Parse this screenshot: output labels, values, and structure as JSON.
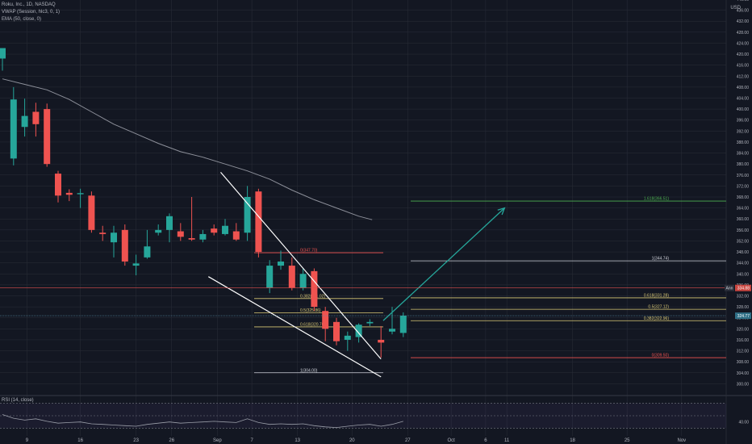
{
  "header": {
    "title": "Roku, Inc., 1D, NASDAQ",
    "vwap": "VWAP (Session, hlc3, 0, 1)",
    "ema": "EMA (50, close, 0)",
    "currency": "USD"
  },
  "rsi_label": "RSI (14, close)",
  "colors": {
    "background": "#131722",
    "bull": "#26a69a",
    "bear": "#ef5350",
    "grid": "#2a2e39",
    "text": "#b2b5be",
    "ema": "#8c8f99",
    "wedge": "#ffffff",
    "arrow": "#26a69a",
    "fib_top": "#4caf50",
    "fib_base": "#ef5350",
    "fib_mid": "#d9c876",
    "current_line": "#e05050",
    "last_line": "#5a8fa8"
  },
  "chart_data": {
    "type": "candlestick",
    "symbol": "ROKU",
    "timeframe": "1D",
    "exchange": "NASDAQ",
    "currency": "USD",
    "ylim": [
      296,
      440
    ],
    "y_ticks": [
      300.0,
      304.0,
      308.0,
      312.0,
      316.0,
      320.0,
      324.0,
      328.0,
      332.0,
      336.0,
      340.0,
      344.0,
      348.0,
      352.0,
      356.0,
      360.0,
      364.0,
      368.0,
      372.0,
      376.0,
      380.0,
      384.0,
      388.0,
      392.0,
      396.0,
      400.0,
      404.0,
      408.0,
      412.0,
      416.0,
      420.0,
      424.0,
      428.0,
      432.0,
      436.0,
      440.0
    ],
    "x_ticks": [
      {
        "label": "9",
        "idx": 2.2
      },
      {
        "label": "16",
        "idx": 7
      },
      {
        "label": "23",
        "idx": 12
      },
      {
        "label": "26",
        "idx": 15.2
      },
      {
        "label": "Sep",
        "idx": 19.3
      },
      {
        "label": "7",
        "idx": 22.4
      },
      {
        "label": "13",
        "idx": 26.5
      },
      {
        "label": "20",
        "idx": 31.4
      },
      {
        "label": "27",
        "idx": 36.4
      },
      {
        "label": "Oct",
        "idx": 40.3
      },
      {
        "label": "6",
        "idx": 43.4
      },
      {
        "label": "11",
        "idx": 45.3
      },
      {
        "label": "18",
        "idx": 51.2
      },
      {
        "label": "25",
        "idx": 56.1
      },
      {
        "label": "Nov",
        "idx": 61.0
      }
    ],
    "candles": [
      {
        "o": 418.4,
        "h": 422.0,
        "l": 414.0,
        "c": 422.2
      },
      {
        "o": 382.0,
        "h": 408.0,
        "l": 379.5,
        "c": 403.5
      },
      {
        "o": 393.5,
        "h": 403.8,
        "l": 390.0,
        "c": 397.5
      },
      {
        "o": 399.0,
        "h": 402.3,
        "l": 390.0,
        "c": 394.5
      },
      {
        "o": 400.0,
        "h": 402.0,
        "l": 379.0,
        "c": 380.0
      },
      {
        "o": 376.5,
        "h": 377.5,
        "l": 366.0,
        "c": 368.5
      },
      {
        "o": 369.5,
        "h": 370.8,
        "l": 366.5,
        "c": 368.8
      },
      {
        "o": 369.0,
        "h": 371.0,
        "l": 364.0,
        "c": 369.4
      },
      {
        "o": 368.5,
        "h": 370.0,
        "l": 355.0,
        "c": 356.0
      },
      {
        "o": 355.0,
        "h": 357.5,
        "l": 352.0,
        "c": 354.5
      },
      {
        "o": 351.5,
        "h": 357.5,
        "l": 346.0,
        "c": 355.0
      },
      {
        "o": 356.0,
        "h": 358.0,
        "l": 343.0,
        "c": 344.5
      },
      {
        "o": 343.0,
        "h": 347.0,
        "l": 339.5,
        "c": 343.8
      },
      {
        "o": 346.0,
        "h": 356.0,
        "l": 345.5,
        "c": 350.0
      },
      {
        "o": 355.0,
        "h": 358.0,
        "l": 354.0,
        "c": 356.0
      },
      {
        "o": 356.0,
        "h": 362.0,
        "l": 351.5,
        "c": 361.0
      },
      {
        "o": 355.5,
        "h": 358.5,
        "l": 352.0,
        "c": 353.5
      },
      {
        "o": 353.0,
        "h": 368.0,
        "l": 352.0,
        "c": 352.5
      },
      {
        "o": 352.5,
        "h": 356.0,
        "l": 351.5,
        "c": 354.5
      },
      {
        "o": 356.5,
        "h": 358.0,
        "l": 354.0,
        "c": 355.0
      },
      {
        "o": 354.5,
        "h": 360.0,
        "l": 354.0,
        "c": 357.5
      },
      {
        "o": 355.5,
        "h": 358.5,
        "l": 352.0,
        "c": 352.5
      },
      {
        "o": 355.0,
        "h": 372.0,
        "l": 352.0,
        "c": 368.0
      },
      {
        "o": 370.0,
        "h": 371.0,
        "l": 346.0,
        "c": 348.0
      },
      {
        "o": 335.0,
        "h": 345.0,
        "l": 333.0,
        "c": 343.0
      },
      {
        "o": 343.0,
        "h": 348.5,
        "l": 341.5,
        "c": 344.5
      },
      {
        "o": 343.0,
        "h": 346.0,
        "l": 334.0,
        "c": 335.0
      },
      {
        "o": 335.0,
        "h": 342.0,
        "l": 334.0,
        "c": 340.0
      },
      {
        "o": 341.0,
        "h": 342.0,
        "l": 326.5,
        "c": 328.0
      },
      {
        "o": 326.5,
        "h": 328.0,
        "l": 315.5,
        "c": 320.0
      },
      {
        "o": 322.5,
        "h": 324.0,
        "l": 314.0,
        "c": 315.5
      },
      {
        "o": 316.0,
        "h": 319.0,
        "l": 312.0,
        "c": 317.5
      },
      {
        "o": 317.0,
        "h": 322.0,
        "l": 315.0,
        "c": 321.5
      },
      {
        "o": 322.0,
        "h": 323.5,
        "l": 321.0,
        "c": 322.5
      },
      {
        "o": 316.0,
        "h": 321.0,
        "l": 309.5,
        "c": 315.0
      },
      {
        "o": 319.0,
        "h": 328.0,
        "l": 318.0,
        "c": 320.0
      },
      {
        "o": 318.5,
        "h": 326.0,
        "l": 317.0,
        "c": 324.8
      }
    ],
    "ema50": [
      [
        0,
        411.0
      ],
      [
        2,
        409.0
      ],
      [
        4,
        407.0
      ],
      [
        6,
        403.5
      ],
      [
        8,
        399.0
      ],
      [
        10,
        394.5
      ],
      [
        12,
        391.0
      ],
      [
        14,
        387.5
      ],
      [
        16,
        384.5
      ],
      [
        18,
        382.5
      ],
      [
        20,
        380.0
      ],
      [
        22,
        377.5
      ],
      [
        24,
        374.5
      ],
      [
        26,
        370.5
      ],
      [
        28,
        367.0
      ],
      [
        30,
        364.0
      ],
      [
        32,
        361.0
      ],
      [
        33.2,
        359.7
      ]
    ],
    "fib_top": [
      {
        "ratio": "1.618",
        "value": 366.51
      }
    ],
    "fib_recent": [
      {
        "ratio": "1",
        "value": 344.74
      },
      {
        "ratio": "0.618",
        "value": 331.28
      },
      {
        "ratio": "0.5",
        "value": 327.12
      },
      {
        "ratio": "0.382",
        "value": 322.96
      },
      {
        "ratio": "0",
        "value": 309.5
      }
    ],
    "fib_earlier": [
      {
        "ratio": "0",
        "value": 347.7
      },
      {
        "ratio": "0.382",
        "value": 331.02
      },
      {
        "ratio": "0.5",
        "value": 325.86
      },
      {
        "ratio": "0.618",
        "value": 320.7
      },
      {
        "ratio": "1",
        "value": 304.0
      }
    ],
    "wedge_upper": [
      [
        19.6,
        377.0
      ],
      [
        34.0,
        309.0
      ]
    ],
    "wedge_lower": [
      [
        18.5,
        339.0
      ],
      [
        34.0,
        302.5
      ]
    ],
    "projection_arrow": [
      [
        34.2,
        323.0
      ],
      [
        45.1,
        364.0
      ]
    ],
    "price_labels": [
      {
        "text": "334.88",
        "value": 334.88,
        "tag": "Ann"
      },
      {
        "text": "324.77",
        "value": 324.77,
        "tag": ""
      }
    ],
    "rsi": {
      "ylim": [
        20,
        80
      ],
      "bands": [
        70,
        50,
        30
      ],
      "tick_label": "40.00",
      "tick_value": 40,
      "values": [
        52,
        46,
        43,
        45,
        41,
        38,
        39,
        40,
        37,
        36,
        35,
        34,
        33,
        36,
        38,
        40,
        38,
        39,
        40,
        41,
        40,
        39,
        45,
        39,
        36,
        37,
        36,
        37,
        34,
        32,
        31,
        33,
        35,
        36,
        33,
        36,
        41
      ]
    }
  }
}
